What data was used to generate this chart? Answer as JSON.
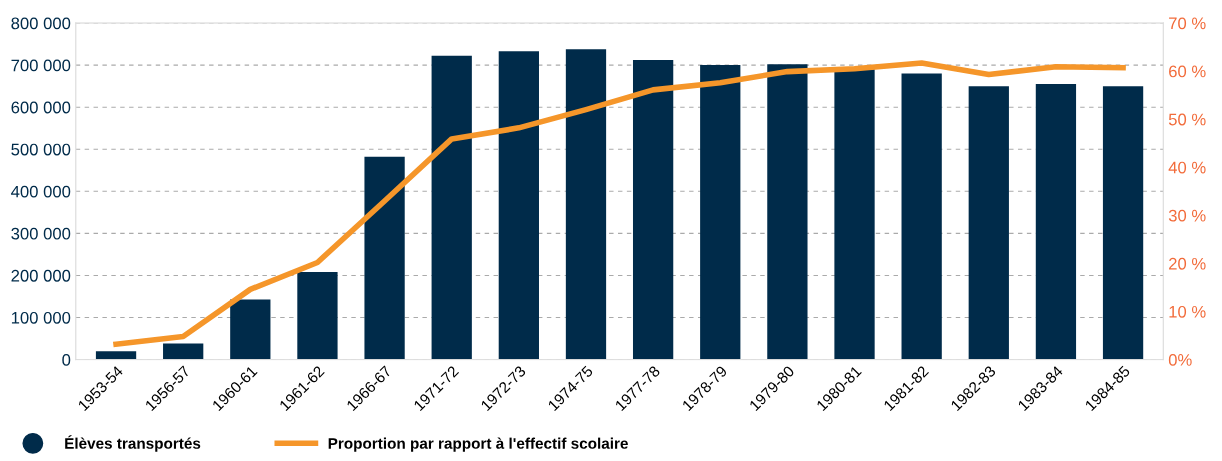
{
  "chart_data": {
    "type": "bar",
    "categories": [
      "1953-54",
      "1956-57",
      "1960-61",
      "1961-62",
      "1966-67",
      "1971-72",
      "1972-73",
      "1974-75",
      "1977-78",
      "1978-79",
      "1979-80",
      "1980-81",
      "1981-82",
      "1982-83",
      "1983-84",
      "1984-85"
    ],
    "series": [
      {
        "name": "Élèves transportés",
        "color": "#002b4a",
        "values": [
          20000,
          38000,
          143000,
          208000,
          482000,
          722000,
          733000,
          738000,
          712000,
          700000,
          702000,
          690000,
          680000,
          650000,
          655000,
          650000
        ]
      },
      {
        "name": "Proportion par rapport à l'effectif scolaire",
        "type": "line",
        "axis": "y2",
        "color": "#f5962a",
        "values": [
          3.2,
          4.8,
          14.6,
          20.2,
          33,
          45.9,
          48.2,
          52,
          56.1,
          57.6,
          59.9,
          60.5,
          61.7,
          59.3,
          60.9,
          60.7
        ]
      }
    ],
    "ylim": [
      0,
      800000
    ],
    "yticks": [
      {
        "value": 0,
        "label": "0"
      },
      {
        "value": 100000,
        "label": "100 000"
      },
      {
        "value": 200000,
        "label": "200 000"
      },
      {
        "value": 300000,
        "label": "300 000"
      },
      {
        "value": 400000,
        "label": "400 000"
      },
      {
        "value": 500000,
        "label": "500 000"
      },
      {
        "value": 600000,
        "label": "600 000"
      },
      {
        "value": 700000,
        "label": "700 000"
      },
      {
        "value": 800000,
        "label": "800 000"
      }
    ],
    "y2lim": [
      0,
      70
    ],
    "y2ticks": [
      {
        "value": 0,
        "label": "0%"
      },
      {
        "value": 10,
        "label": "10 %"
      },
      {
        "value": 20,
        "label": "20 %"
      },
      {
        "value": 30,
        "label": "30 %"
      },
      {
        "value": 40,
        "label": "40 %"
      },
      {
        "value": 50,
        "label": "50 %"
      },
      {
        "value": 60,
        "label": "60 %"
      },
      {
        "value": 70,
        "label": "70 %"
      }
    ],
    "grid": "y",
    "legend": "bottom left",
    "line_style": "solid",
    "marker": "none"
  }
}
